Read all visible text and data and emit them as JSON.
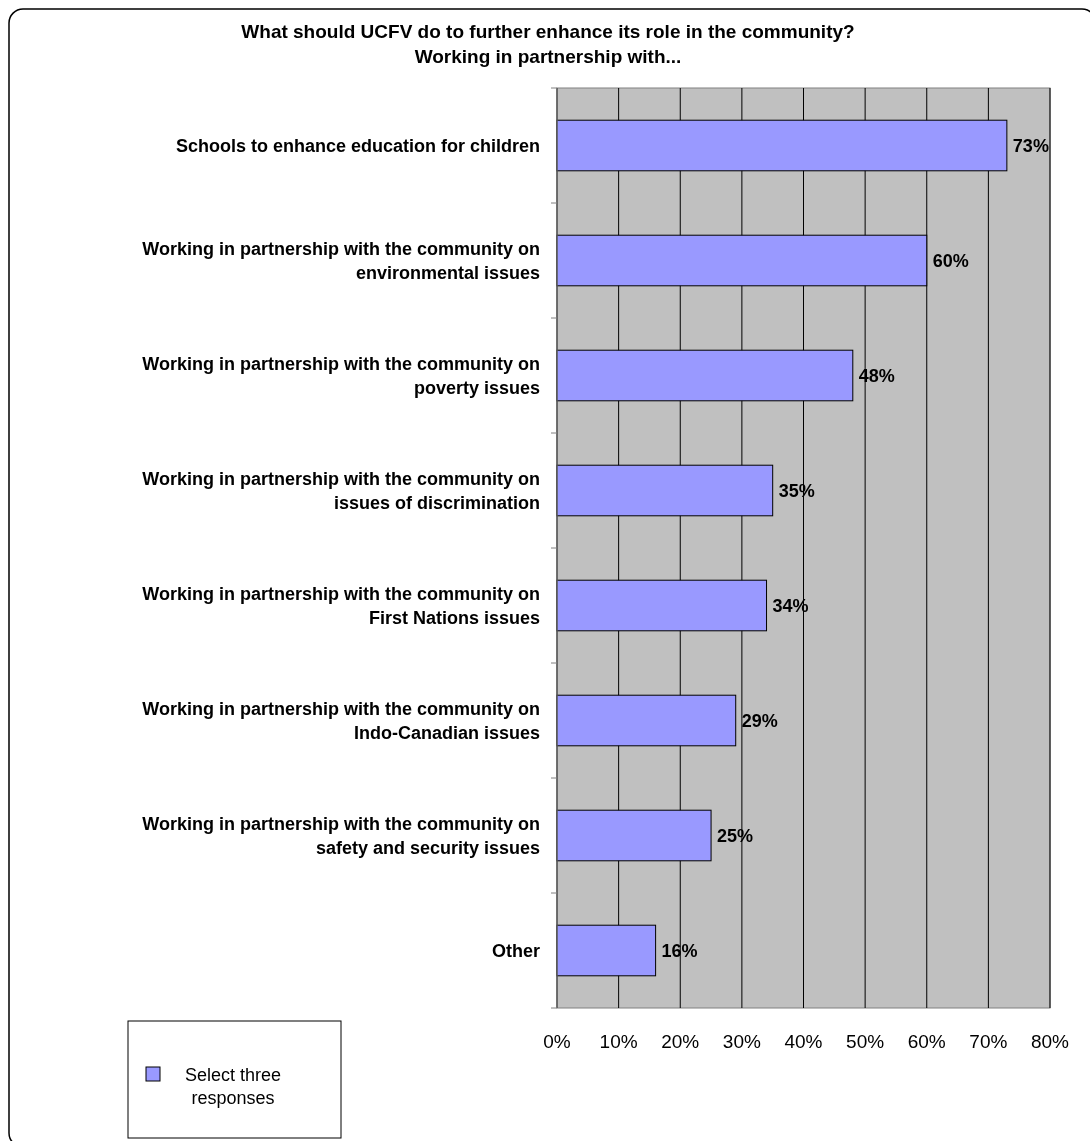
{
  "chart_data": {
    "type": "bar",
    "orientation": "horizontal",
    "title": "What should UCFV do to further enhance its role in the community? Working in partnership with...",
    "categories": [
      "Schools to enhance education for children",
      "Working in partnership with the community on environmental issues",
      "Working in partnership with the community on poverty issues",
      "Working in partnership with the community on issues of discrimination",
      "Working in partnership with the community on First Nations issues",
      "Working in partnership with the community on Indo-Canadian issues",
      "Working in partnership with the community on safety and security issues",
      "Other"
    ],
    "series": [
      {
        "name": "Select three responses",
        "color": "#9999ff",
        "values": [
          73,
          60,
          48,
          35,
          34,
          29,
          25,
          16
        ],
        "value_labels": [
          "73%",
          "60%",
          "48%",
          "35%",
          "34%",
          "29%",
          "25%",
          "16%"
        ]
      }
    ],
    "xlim": [
      0,
      80
    ],
    "xticks": [
      {
        "value": 0,
        "label": "0%"
      },
      {
        "value": 10,
        "label": "10%"
      },
      {
        "value": 20,
        "label": "20%"
      },
      {
        "value": 30,
        "label": "30%"
      },
      {
        "value": 40,
        "label": "40%"
      },
      {
        "value": 50,
        "label": "50%"
      },
      {
        "value": 60,
        "label": "60%"
      },
      {
        "value": 70,
        "label": "70%"
      },
      {
        "value": 80,
        "label": "80%"
      }
    ],
    "grid": "x",
    "legend": "bottom left"
  }
}
